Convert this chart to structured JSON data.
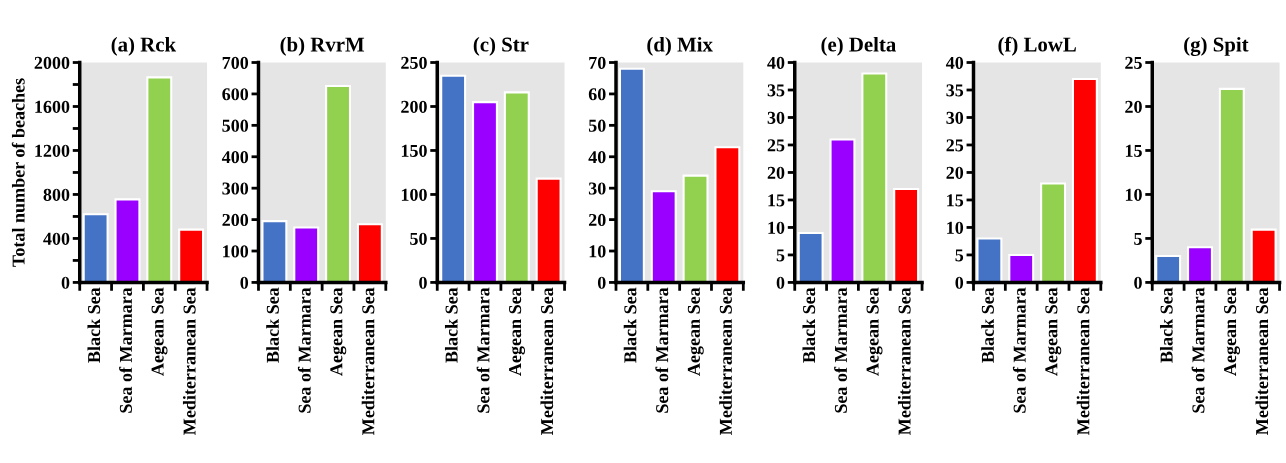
{
  "chart_data": [
    {
      "type": "bar",
      "title": "(a) Rck",
      "ylabel": "Total number of beaches",
      "categories": [
        "Black Sea",
        "Sea of Marmara",
        "Aegean Sea",
        "Mediterranean Sea"
      ],
      "values": [
        620,
        755,
        1865,
        480
      ],
      "colors": [
        "#4472c4",
        "#9900ff",
        "#92d050",
        "#ff0000"
      ],
      "ylim": [
        0,
        2000
      ],
      "yticks": [
        0,
        {
          "value": 200,
          "label": null
        },
        400,
        {
          "value": 600,
          "label": null
        },
        800,
        {
          "value": 1000,
          "label": null
        },
        1200,
        {
          "value": 1400,
          "label": null
        },
        1600,
        {
          "value": 1800,
          "label": null
        },
        2000
      ]
    },
    {
      "type": "bar",
      "title": "(b) RvrM",
      "categories": [
        "Black Sea",
        "Sea of Marmara",
        "Aegean Sea",
        "Mediterranean Sea"
      ],
      "values": [
        195,
        175,
        625,
        185
      ],
      "colors": [
        "#4472c4",
        "#9900ff",
        "#92d050",
        "#ff0000"
      ],
      "ylim": [
        0,
        700
      ],
      "yticks": [
        0,
        100,
        200,
        300,
        400,
        500,
        600,
        700
      ]
    },
    {
      "type": "bar",
      "title": "(c) Str",
      "categories": [
        "Black Sea",
        "Sea of Marmara",
        "Aegean Sea",
        "Mediterranean Sea"
      ],
      "values": [
        235,
        205,
        216,
        118
      ],
      "colors": [
        "#4472c4",
        "#9900ff",
        "#92d050",
        "#ff0000"
      ],
      "ylim": [
        0,
        250
      ],
      "yticks": [
        0,
        50,
        100,
        150,
        200,
        250
      ]
    },
    {
      "type": "bar",
      "title": "(d) Mix",
      "categories": [
        "Black Sea",
        "Sea of Marmara",
        "Aegean Sea",
        "Mediterranean Sea"
      ],
      "values": [
        68,
        29,
        34,
        43
      ],
      "colors": [
        "#4472c4",
        "#9900ff",
        "#92d050",
        "#ff0000"
      ],
      "ylim": [
        0,
        70
      ],
      "yticks": [
        0,
        10,
        20,
        30,
        40,
        50,
        60,
        70
      ]
    },
    {
      "type": "bar",
      "title": "(e) Delta",
      "categories": [
        "Black Sea",
        "Sea of Marmara",
        "Aegean Sea",
        "Mediterranean Sea"
      ],
      "values": [
        9,
        26,
        38,
        17
      ],
      "colors": [
        "#4472c4",
        "#9900ff",
        "#92d050",
        "#ff0000"
      ],
      "ylim": [
        0,
        40
      ],
      "yticks": [
        0,
        5,
        10,
        15,
        20,
        25,
        30,
        35,
        40
      ]
    },
    {
      "type": "bar",
      "title": "(f) LowL",
      "categories": [
        "Black Sea",
        "Sea of Marmara",
        "Aegean Sea",
        "Mediterranean Sea"
      ],
      "values": [
        8,
        5,
        18,
        37
      ],
      "colors": [
        "#4472c4",
        "#9900ff",
        "#92d050",
        "#ff0000"
      ],
      "ylim": [
        0,
        40
      ],
      "yticks": [
        0,
        5,
        10,
        15,
        20,
        25,
        30,
        35,
        40
      ]
    },
    {
      "type": "bar",
      "title": "(g) Spit",
      "categories": [
        "Black Sea",
        "Sea of Marmara",
        "Aegean Sea",
        "Mediterranean Sea"
      ],
      "values": [
        3,
        4,
        22,
        6
      ],
      "colors": [
        "#4472c4",
        "#9900ff",
        "#92d050",
        "#ff0000"
      ],
      "ylim": [
        0,
        25
      ],
      "yticks": [
        0,
        5,
        10,
        15,
        20,
        25
      ]
    }
  ]
}
